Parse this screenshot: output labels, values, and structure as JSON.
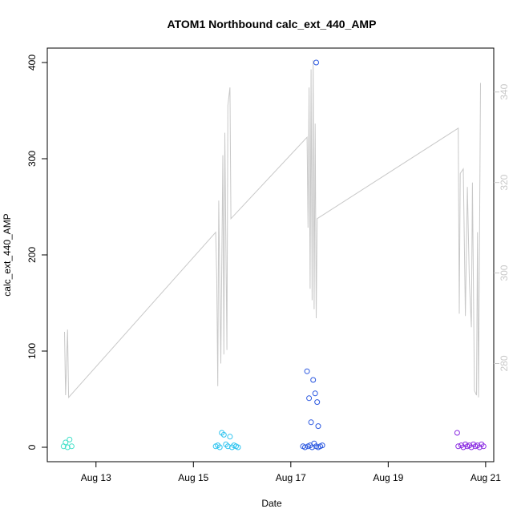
{
  "chart_data": {
    "type": "scatter",
    "title": "ATOM1 Northbound calc_ext_440_AMP",
    "xlabel": "Date",
    "ylabel": "calc_ext_440_AMP",
    "xlim": [
      "2023-08-12 00:00",
      "2023-08-21 04:00"
    ],
    "ylim": [
      -15,
      415
    ],
    "y2lim": [
      258.3,
      349.7
    ],
    "x_ticks": [
      {
        "label": "Aug 13",
        "value": "2023-08-13 00:00"
      },
      {
        "label": "Aug 15",
        "value": "2023-08-15 00:00"
      },
      {
        "label": "Aug 17",
        "value": "2023-08-17 00:00"
      },
      {
        "label": "Aug 19",
        "value": "2023-08-19 00:00"
      },
      {
        "label": "Aug 21",
        "value": "2023-08-21 00:00"
      }
    ],
    "y_ticks": [
      "0",
      "100",
      "200",
      "300",
      "400"
    ],
    "y2_ticks": [
      "280",
      "300",
      "320",
      "340"
    ],
    "grid": false,
    "right_axis_color": "#c8c8c8",
    "line_series": {
      "color": "#c8c8c8",
      "points": [
        [
          "2023-08-12 08:30",
          287.0
        ],
        [
          "2023-08-12 09:00",
          273.0
        ],
        [
          "2023-08-12 10:00",
          287.5
        ],
        [
          "2023-08-12 10:30",
          272.5
        ],
        [
          "2023-08-15 11:00",
          309.0
        ],
        [
          "2023-08-15 11:30",
          299.0
        ],
        [
          "2023-08-15 12:00",
          275.0
        ],
        [
          "2023-08-15 12:30",
          316.0
        ],
        [
          "2023-08-15 13:30",
          280.0
        ],
        [
          "2023-08-15 14:30",
          326.0
        ],
        [
          "2023-08-15 15:00",
          282.0
        ],
        [
          "2023-08-15 15:30",
          331.0
        ],
        [
          "2023-08-15 16:30",
          283.0
        ],
        [
          "2023-08-15 17:00",
          337.0
        ],
        [
          "2023-08-15 18:00",
          341.0
        ],
        [
          "2023-08-15 18:30",
          312.0
        ],
        [
          "2023-08-17 08:00",
          330.0
        ],
        [
          "2023-08-17 08:30",
          310.0
        ],
        [
          "2023-08-17 09:00",
          341.0
        ],
        [
          "2023-08-17 09:30",
          296.5
        ],
        [
          "2023-08-17 10:00",
          345.0
        ],
        [
          "2023-08-17 10:30",
          294.0
        ],
        [
          "2023-08-17 11:00",
          347.0
        ],
        [
          "2023-08-17 11:30",
          292.0
        ],
        [
          "2023-08-17 12:00",
          333.0
        ],
        [
          "2023-08-17 12:30",
          290.0
        ],
        [
          "2023-08-17 13:00",
          312.0
        ],
        [
          "2023-08-20 10:30",
          332.0
        ],
        [
          "2023-08-20 11:00",
          291.0
        ],
        [
          "2023-08-20 11:30",
          322.0
        ],
        [
          "2023-08-20 13:00",
          323.0
        ],
        [
          "2023-08-20 14:00",
          290.5
        ],
        [
          "2023-08-20 15:00",
          319.0
        ],
        [
          "2023-08-20 16:00",
          298.0
        ],
        [
          "2023-08-20 17:00",
          288.0
        ],
        [
          "2023-08-20 17:30",
          320.0
        ],
        [
          "2023-08-20 18:30",
          274.0
        ],
        [
          "2023-08-20 19:30",
          273.0
        ],
        [
          "2023-08-20 20:00",
          309.0
        ],
        [
          "2023-08-20 20:30",
          272.5
        ],
        [
          "2023-08-20 21:30",
          342.0
        ]
      ]
    },
    "series": [
      {
        "color": "#40e0c8",
        "points": [
          [
            "2023-08-12 08:00",
            1
          ],
          [
            "2023-08-12 09:00",
            5
          ],
          [
            "2023-08-12 10:00",
            0
          ],
          [
            "2023-08-12 11:00",
            8
          ],
          [
            "2023-08-12 12:00",
            1
          ]
        ]
      },
      {
        "color": "#2ec4f0",
        "points": [
          [
            "2023-08-15 11:00",
            1
          ],
          [
            "2023-08-15 12:00",
            2
          ],
          [
            "2023-08-15 13:00",
            0
          ],
          [
            "2023-08-15 14:00",
            15
          ],
          [
            "2023-08-15 15:00",
            13
          ],
          [
            "2023-08-15 16:00",
            3
          ],
          [
            "2023-08-15 17:00",
            1
          ],
          [
            "2023-08-15 18:00",
            11
          ],
          [
            "2023-08-15 19:00",
            0
          ],
          [
            "2023-08-15 20:00",
            2
          ],
          [
            "2023-08-15 21:00",
            1
          ],
          [
            "2023-08-15 22:00",
            0
          ]
        ]
      },
      {
        "color": "#2a57e0",
        "points": [
          [
            "2023-08-17 08:00",
            79
          ],
          [
            "2023-08-17 09:00",
            51
          ],
          [
            "2023-08-17 10:00",
            26
          ],
          [
            "2023-08-17 11:00",
            70
          ],
          [
            "2023-08-17 12:00",
            56
          ],
          [
            "2023-08-17 13:00",
            47
          ],
          [
            "2023-08-17 13:30",
            22
          ],
          [
            "2023-08-17 12:30",
            400
          ],
          [
            "2023-08-17 06:00",
            1
          ],
          [
            "2023-08-17 07:00",
            0
          ],
          [
            "2023-08-17 08:30",
            1
          ],
          [
            "2023-08-17 09:30",
            2
          ],
          [
            "2023-08-17 10:30",
            0
          ],
          [
            "2023-08-17 11:30",
            4
          ],
          [
            "2023-08-17 12:30",
            1
          ],
          [
            "2023-08-17 13:30",
            0
          ],
          [
            "2023-08-17 14:30",
            1
          ],
          [
            "2023-08-17 15:30",
            2
          ]
        ]
      },
      {
        "color": "#8a2be2",
        "points": [
          [
            "2023-08-20 10:00",
            15
          ],
          [
            "2023-08-20 10:30",
            1
          ],
          [
            "2023-08-20 12:00",
            2
          ],
          [
            "2023-08-20 13:00",
            0
          ],
          [
            "2023-08-20 14:00",
            3
          ],
          [
            "2023-08-20 15:00",
            1
          ],
          [
            "2023-08-20 16:00",
            2
          ],
          [
            "2023-08-20 17:00",
            0
          ],
          [
            "2023-08-20 18:00",
            3
          ],
          [
            "2023-08-20 19:00",
            1
          ],
          [
            "2023-08-20 20:00",
            2
          ],
          [
            "2023-08-20 21:00",
            0
          ],
          [
            "2023-08-20 22:00",
            3
          ],
          [
            "2023-08-20 23:00",
            1
          ]
        ]
      }
    ]
  }
}
